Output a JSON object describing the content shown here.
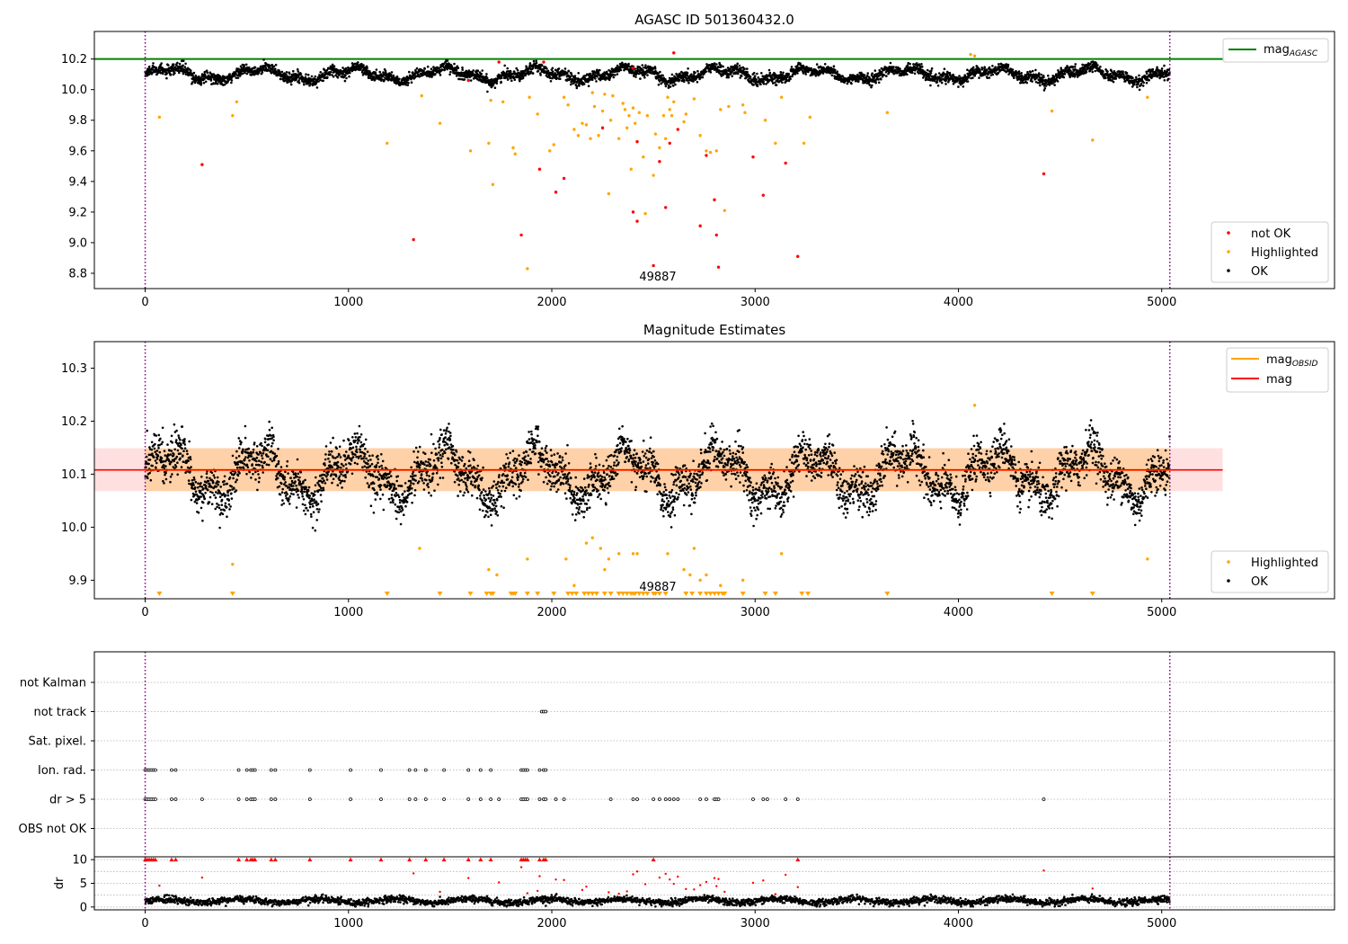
{
  "chart_data": [
    {
      "type": "scatter",
      "title": "AGASC ID 501360432.0",
      "xlim": [
        -250,
        5850
      ],
      "ylim": [
        8.7,
        10.38
      ],
      "x_ticks": [
        0,
        1000,
        2000,
        3000,
        4000,
        5000
      ],
      "x_tick_labels": [
        "0",
        "1000",
        "2000",
        "3000",
        "4000",
        "5000"
      ],
      "y_ticks": [
        8.8,
        9.0,
        9.2,
        9.4,
        9.6,
        9.8,
        10.0,
        10.2
      ],
      "y_tick_labels": [
        "8.8",
        "9.0",
        "9.2",
        "9.4",
        "9.6",
        "9.8",
        "10.0",
        "10.2"
      ],
      "vlines": [
        0,
        5040
      ],
      "hline": {
        "name": "mag",
        "subscript": "AGASC",
        "value": 10.2,
        "color": "#008000",
        "x_range": [
          -250,
          5300
        ]
      },
      "obsid_label": {
        "text": "49887",
        "x": 2520,
        "y": 8.76
      },
      "ok_band": {
        "mean": 10.1,
        "amplitude": 0.035,
        "noise": 0.025,
        "x_range": [
          0,
          5040
        ]
      },
      "series": [
        {
          "name": "not OK",
          "color": "#ff0000",
          "points": [
            [
              280,
              9.51
            ],
            [
              1320,
              9.02
            ],
            [
              1590,
              10.06
            ],
            [
              1740,
              10.18
            ],
            [
              1850,
              9.05
            ],
            [
              1940,
              9.48
            ],
            [
              1960,
              10.18
            ],
            [
              2020,
              9.33
            ],
            [
              2060,
              9.42
            ],
            [
              2250,
              9.75
            ],
            [
              2400,
              9.2
            ],
            [
              2420,
              9.14
            ],
            [
              2400,
              10.14
            ],
            [
              2420,
              9.66
            ],
            [
              2500,
              8.85
            ],
            [
              2530,
              9.53
            ],
            [
              2560,
              9.23
            ],
            [
              2580,
              9.65
            ],
            [
              2600,
              10.24
            ],
            [
              2620,
              9.74
            ],
            [
              2730,
              9.11
            ],
            [
              2760,
              9.57
            ],
            [
              2800,
              9.28
            ],
            [
              2810,
              9.05
            ],
            [
              2820,
              8.84
            ],
            [
              2990,
              9.56
            ],
            [
              3040,
              9.31
            ],
            [
              3150,
              9.52
            ],
            [
              3210,
              8.91
            ],
            [
              4420,
              9.45
            ]
          ]
        },
        {
          "name": "Highlighted",
          "color": "#ffa500",
          "points": [
            [
              70,
              9.82
            ],
            [
              430,
              9.83
            ],
            [
              450,
              9.92
            ],
            [
              1190,
              9.65
            ],
            [
              1360,
              9.96
            ],
            [
              1450,
              9.78
            ],
            [
              1600,
              9.6
            ],
            [
              1690,
              9.65
            ],
            [
              1700,
              9.93
            ],
            [
              1710,
              9.38
            ],
            [
              1760,
              9.92
            ],
            [
              1810,
              9.62
            ],
            [
              1820,
              9.58
            ],
            [
              1880,
              8.83
            ],
            [
              1890,
              9.95
            ],
            [
              1930,
              9.84
            ],
            [
              1990,
              9.6
            ],
            [
              2010,
              9.64
            ],
            [
              2060,
              9.95
            ],
            [
              2080,
              9.9
            ],
            [
              2110,
              9.74
            ],
            [
              2130,
              9.7
            ],
            [
              2150,
              9.78
            ],
            [
              2170,
              9.77
            ],
            [
              2190,
              9.68
            ],
            [
              2200,
              9.98
            ],
            [
              2210,
              9.89
            ],
            [
              2230,
              9.7
            ],
            [
              2250,
              9.86
            ],
            [
              2260,
              9.97
            ],
            [
              2280,
              9.32
            ],
            [
              2290,
              9.8
            ],
            [
              2300,
              9.96
            ],
            [
              2330,
              9.68
            ],
            [
              2350,
              9.91
            ],
            [
              2360,
              9.87
            ],
            [
              2370,
              9.75
            ],
            [
              2380,
              9.83
            ],
            [
              2390,
              9.48
            ],
            [
              2400,
              9.88
            ],
            [
              2410,
              9.78
            ],
            [
              2430,
              9.85
            ],
            [
              2450,
              9.56
            ],
            [
              2460,
              9.19
            ],
            [
              2470,
              9.83
            ],
            [
              2500,
              9.44
            ],
            [
              2510,
              9.71
            ],
            [
              2530,
              9.62
            ],
            [
              2550,
              9.83
            ],
            [
              2560,
              9.68
            ],
            [
              2570,
              9.95
            ],
            [
              2580,
              9.87
            ],
            [
              2590,
              9.83
            ],
            [
              2600,
              9.92
            ],
            [
              2650,
              9.79
            ],
            [
              2660,
              9.84
            ],
            [
              2700,
              9.94
            ],
            [
              2730,
              9.7
            ],
            [
              2760,
              9.6
            ],
            [
              2780,
              9.59
            ],
            [
              2810,
              9.6
            ],
            [
              2830,
              9.87
            ],
            [
              2850,
              9.21
            ],
            [
              2870,
              9.89
            ],
            [
              2940,
              9.9
            ],
            [
              2950,
              9.85
            ],
            [
              3050,
              9.8
            ],
            [
              3100,
              9.65
            ],
            [
              3130,
              9.95
            ],
            [
              3240,
              9.65
            ],
            [
              3270,
              9.82
            ],
            [
              3650,
              9.85
            ],
            [
              4460,
              9.86
            ],
            [
              4660,
              9.67
            ],
            [
              4930,
              9.95
            ],
            [
              4060,
              10.23
            ],
            [
              4080,
              10.22
            ]
          ]
        }
      ],
      "legend": {
        "placement": "lower-right",
        "entries": [
          "not OK",
          "Highlighted",
          "OK"
        ]
      }
    },
    {
      "type": "scatter",
      "title": "Magnitude Estimates",
      "xlim": [
        -250,
        5850
      ],
      "ylim": [
        9.865,
        10.35
      ],
      "x_ticks": [
        0,
        1000,
        2000,
        3000,
        4000,
        5000
      ],
      "x_tick_labels": [
        "0",
        "1000",
        "2000",
        "3000",
        "4000",
        "5000"
      ],
      "y_ticks": [
        9.9,
        10.0,
        10.1,
        10.2,
        10.3
      ],
      "y_tick_labels": [
        "9.9",
        "10.0",
        "10.1",
        "10.2",
        "10.3"
      ],
      "vlines": [
        0,
        5040
      ],
      "mag_line": {
        "name": "mag",
        "value": 10.108,
        "band": [
          10.068,
          10.149
        ],
        "color": "#ff0000",
        "x_range": [
          -250,
          5300
        ]
      },
      "mag_obsid": {
        "name": "mag",
        "subscript": "OBSID",
        "value": 10.108,
        "band": [
          10.068,
          10.149
        ],
        "color": "#ffa500",
        "x_range": [
          0,
          5040
        ]
      },
      "obsid_label": {
        "text": "49887",
        "x": 2520,
        "y": 9.88
      },
      "ok_band": {
        "mean": 10.1,
        "amplitude": 0.04,
        "noise": 0.028,
        "x_range": [
          0,
          5040
        ]
      },
      "highlighted_points": [
        [
          430,
          9.93
        ],
        [
          1350,
          9.96
        ],
        [
          1690,
          9.92
        ],
        [
          1730,
          9.91
        ],
        [
          1880,
          9.94
        ],
        [
          2070,
          9.94
        ],
        [
          2110,
          9.89
        ],
        [
          2170,
          9.97
        ],
        [
          2200,
          9.98
        ],
        [
          2240,
          9.96
        ],
        [
          2260,
          9.92
        ],
        [
          2280,
          9.94
        ],
        [
          2330,
          9.95
        ],
        [
          2400,
          9.95
        ],
        [
          2420,
          9.95
        ],
        [
          2570,
          9.95
        ],
        [
          2650,
          9.92
        ],
        [
          2680,
          9.91
        ],
        [
          2700,
          9.96
        ],
        [
          2730,
          9.9
        ],
        [
          2760,
          9.91
        ],
        [
          2830,
          9.89
        ],
        [
          2940,
          9.9
        ],
        [
          3130,
          9.95
        ],
        [
          4930,
          9.94
        ],
        [
          4080,
          10.23
        ]
      ],
      "offscale_markers_x": [
        70,
        430,
        1190,
        1450,
        1600,
        1680,
        1700,
        1710,
        1800,
        1810,
        1820,
        1880,
        1930,
        2010,
        2080,
        2100,
        2120,
        2160,
        2180,
        2200,
        2220,
        2260,
        2290,
        2330,
        2350,
        2370,
        2390,
        2400,
        2410,
        2430,
        2450,
        2470,
        2500,
        2510,
        2530,
        2560,
        2660,
        2690,
        2730,
        2760,
        2780,
        2800,
        2820,
        2840,
        2850,
        2940,
        3050,
        3100,
        3230,
        3260,
        3650,
        4460,
        4660
      ],
      "legend_top": {
        "placement": "upper-right",
        "entries": [
          "mag",
          "mag"
        ]
      },
      "legend_bottom": {
        "placement": "lower-right",
        "entries": [
          "Highlighted",
          "OK"
        ]
      }
    },
    {
      "type": "scatter",
      "xlim": [
        -250,
        5850
      ],
      "x_ticks": [
        0,
        1000,
        2000,
        3000,
        4000,
        5000
      ],
      "x_tick_labels": [
        "0",
        "1000",
        "2000",
        "3000",
        "4000",
        "5000"
      ],
      "vlines": [
        0,
        5040
      ],
      "categories": [
        "not Kalman",
        "not track",
        "Sat. pixel.",
        "Ion. rad.",
        "dr > 5",
        "OBS not OK"
      ],
      "flags": {
        "not track": [
          1950,
          1960,
          1970
        ],
        "Ion. rad.": [
          0,
          10,
          20,
          30,
          40,
          50,
          130,
          150,
          460,
          500,
          520,
          530,
          540,
          620,
          640,
          810,
          1010,
          1160,
          1300,
          1330,
          1380,
          1470,
          1590,
          1650,
          1700,
          1850,
          1860,
          1870,
          1880,
          1940,
          1960,
          1970
        ],
        "dr > 5": [
          0,
          10,
          20,
          30,
          40,
          50,
          130,
          150,
          280,
          460,
          500,
          520,
          530,
          540,
          620,
          640,
          810,
          1010,
          1160,
          1300,
          1330,
          1380,
          1470,
          1590,
          1650,
          1700,
          1740,
          1850,
          1860,
          1870,
          1880,
          1940,
          1960,
          1970,
          2020,
          2060,
          2290,
          2400,
          2420,
          2500,
          2530,
          2560,
          2580,
          2600,
          2620,
          2730,
          2760,
          2800,
          2810,
          2820,
          2990,
          3040,
          3060,
          3150,
          3210,
          4420
        ]
      }
    },
    {
      "type": "scatter",
      "ylabel": "dr",
      "xlim": [
        -250,
        5850
      ],
      "ylim": [
        -0.6,
        10.6
      ],
      "x_ticks": [
        0,
        1000,
        2000,
        3000,
        4000,
        5000
      ],
      "x_tick_labels": [
        "0",
        "1000",
        "2000",
        "3000",
        "4000",
        "5000"
      ],
      "y_ticks": [
        0,
        5,
        10
      ],
      "y_tick_labels": [
        "0",
        "5",
        "10"
      ],
      "vlines": [
        0,
        5040
      ],
      "dr_ok_band": {
        "mean": 1.3,
        "noise": 0.6,
        "x_range": [
          0,
          5040
        ]
      },
      "dr_capped_x": [
        0,
        10,
        20,
        30,
        40,
        50,
        130,
        150,
        460,
        500,
        520,
        530,
        540,
        620,
        640,
        810,
        1010,
        1160,
        1300,
        1380,
        1470,
        1590,
        1650,
        1700,
        1850,
        1860,
        1870,
        1880,
        1940,
        1960,
        1970,
        2500,
        3210
      ],
      "dr_points": [
        [
          70,
          4.5
        ],
        [
          280,
          6.2
        ],
        [
          1320,
          7.1
        ],
        [
          1450,
          3.2
        ],
        [
          1590,
          6.1
        ],
        [
          1740,
          5.2
        ],
        [
          1850,
          8.4
        ],
        [
          1940,
          6.5
        ],
        [
          2020,
          5.8
        ],
        [
          2060,
          5.7
        ],
        [
          2170,
          4.3
        ],
        [
          2280,
          3.1
        ],
        [
          2400,
          6.9
        ],
        [
          2420,
          7.5
        ],
        [
          2460,
          4.8
        ],
        [
          2530,
          6.2
        ],
        [
          2560,
          7.0
        ],
        [
          2580,
          5.8
        ],
        [
          2600,
          4.9
        ],
        [
          2620,
          6.4
        ],
        [
          2660,
          3.8
        ],
        [
          2730,
          4.6
        ],
        [
          2760,
          5.3
        ],
        [
          2800,
          6.1
        ],
        [
          2810,
          4.4
        ],
        [
          2820,
          5.9
        ],
        [
          2850,
          3.2
        ],
        [
          2990,
          5.1
        ],
        [
          3040,
          5.6
        ],
        [
          3150,
          6.8
        ],
        [
          3210,
          4.2
        ],
        [
          4420,
          7.7
        ],
        [
          4660,
          3.9
        ],
        [
          1880,
          2.9
        ],
        [
          1930,
          3.4
        ],
        [
          2150,
          3.6
        ],
        [
          2330,
          2.8
        ],
        [
          2370,
          3.3
        ],
        [
          2700,
          3.7
        ],
        [
          3100,
          2.7
        ]
      ]
    }
  ]
}
